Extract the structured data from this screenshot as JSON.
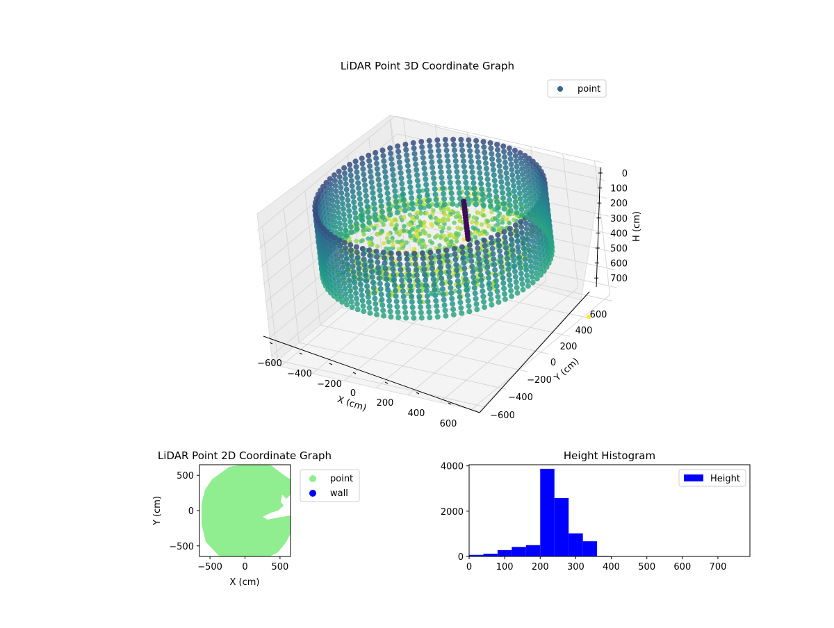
{
  "charts": {
    "lidar_3d": {
      "title": "LiDAR Point 3D Coordinate Graph",
      "legend": "point",
      "xlabel": "X (cm)",
      "ylabel": "Y (cm)",
      "zlabel": "H (cm)"
    },
    "lidar_2d": {
      "title": "LiDAR Point 2D Coordinate Graph",
      "xlabel": "X (cm)",
      "ylabel": "Y (cm)",
      "legend": [
        "point",
        "wall"
      ]
    },
    "histogram": {
      "title": "Height Histogram",
      "legend": "Height"
    }
  },
  "colors": {
    "point_2d": "#90ee90",
    "wall": "#0000ff",
    "histogram_bar": "#0000ff",
    "legend_point_3d": "#31688e",
    "colormap": [
      "#440154",
      "#31688e",
      "#21918c",
      "#35b779",
      "#90d743",
      "#fde725"
    ]
  },
  "chart_data": [
    {
      "type": "scatter",
      "projection": "3d",
      "title": "LiDAR Point 3D Coordinate Graph",
      "xlabel": "X (cm)",
      "ylabel": "Y (cm)",
      "zlabel": "H (cm)",
      "x_ticks": [
        -600,
        -400,
        -200,
        0,
        200,
        400,
        600
      ],
      "y_ticks": [
        -600,
        -400,
        -200,
        0,
        200,
        400,
        600
      ],
      "z_ticks": [
        0,
        100,
        200,
        300,
        400,
        500,
        600,
        700
      ],
      "z_inverted": true,
      "xlim": [
        -650,
        650
      ],
      "ylim": [
        -650,
        650
      ],
      "zlim": [
        0,
        750
      ],
      "colormap": "viridis",
      "legend": [
        "point"
      ],
      "legend_position": "upper-right",
      "shape": "circular room ~600 cm radius; wall ring of points at heights 0-700 cm; interior floor points near 200-300 cm",
      "grid": true
    },
    {
      "type": "scatter",
      "title": "LiDAR Point 2D Coordinate Graph",
      "xlabel": "X (cm)",
      "ylabel": "Y (cm)",
      "x_ticks": [
        -500,
        0,
        500
      ],
      "y_ticks": [
        -500,
        0,
        500
      ],
      "xlim": [
        -650,
        650
      ],
      "ylim": [
        -650,
        650
      ],
      "series": [
        {
          "name": "point",
          "color": "#90ee90"
        },
        {
          "name": "wall",
          "color": "#0000ff"
        }
      ],
      "legend_position": "outside-right",
      "grid": false
    },
    {
      "type": "bar",
      "subtype": "histogram",
      "title": "Height Histogram",
      "bin_width": 40,
      "bin_starts": [
        0,
        40,
        80,
        120,
        160,
        200,
        240,
        280,
        320,
        360,
        400,
        440,
        480,
        520,
        560,
        600,
        640,
        680,
        720,
        760
      ],
      "values": [
        70,
        120,
        280,
        420,
        500,
        3870,
        2580,
        1020,
        670,
        25,
        5,
        3,
        3,
        2,
        2,
        2,
        2,
        2,
        2,
        2
      ],
      "x_ticks": [
        0,
        100,
        200,
        300,
        400,
        500,
        600,
        700
      ],
      "y_ticks": [
        0,
        2000,
        4000
      ],
      "xlim": [
        0,
        790
      ],
      "ylim": [
        0,
        4050
      ],
      "legend": [
        "Height"
      ],
      "legend_position": "top-right",
      "color": "#0000ff",
      "grid": false
    }
  ]
}
